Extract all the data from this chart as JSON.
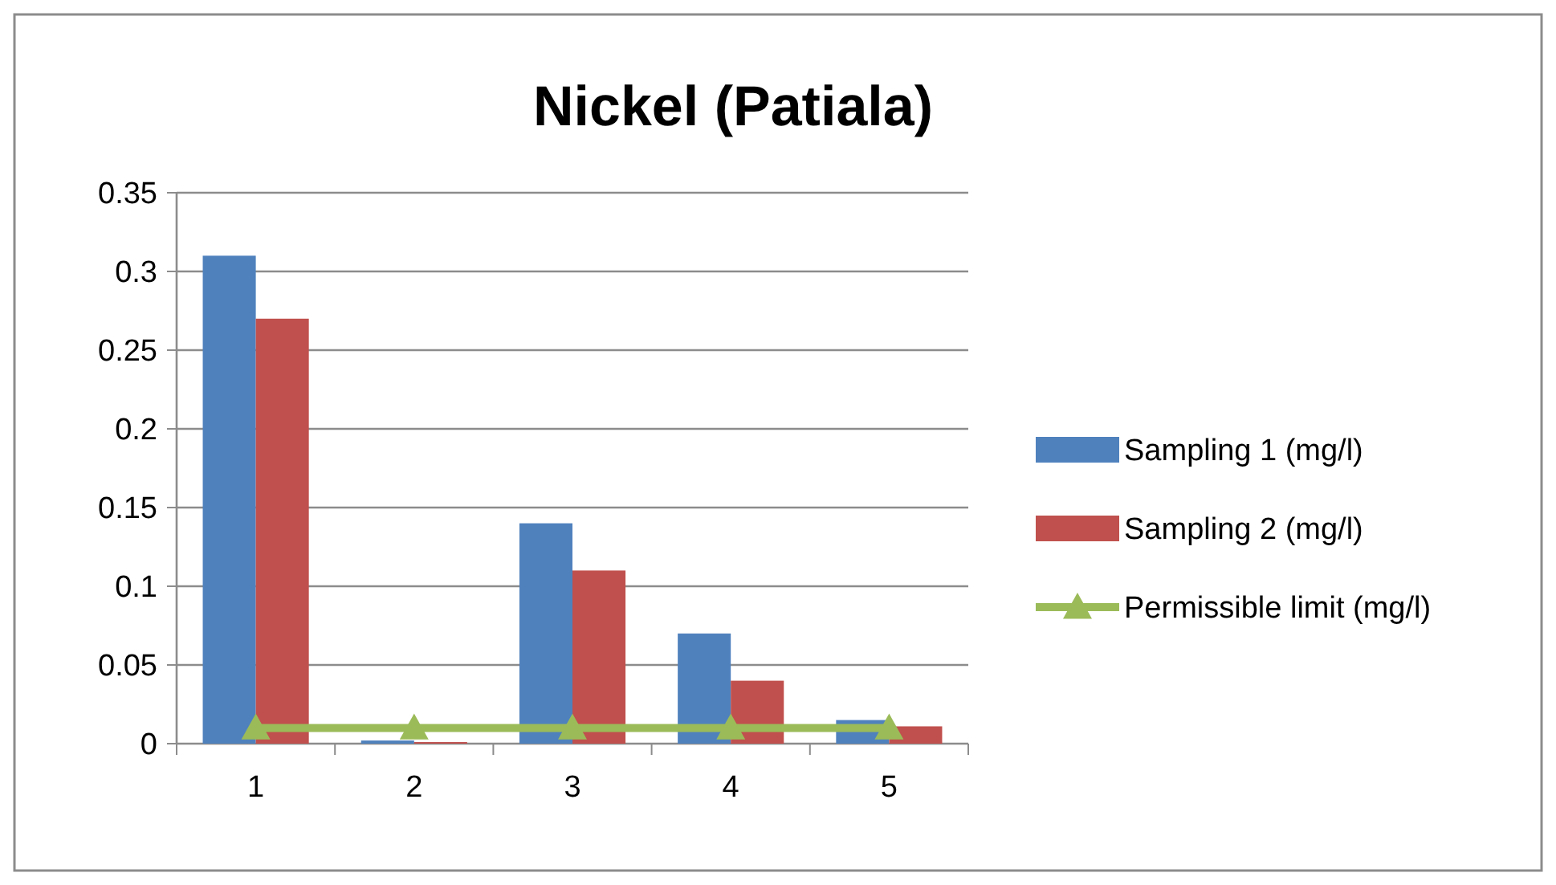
{
  "chart_data": {
    "type": "bar",
    "title": "Nickel (Patiala)",
    "categories": [
      "1",
      "2",
      "3",
      "4",
      "5"
    ],
    "series": [
      {
        "name": "Sampling 1 (mg/l)",
        "color": "#4f81bd",
        "values": [
          0.31,
          0.002,
          0.14,
          0.07,
          0.015
        ]
      },
      {
        "name": "Sampling 2 (mg/l)",
        "color": "#c0504d",
        "values": [
          0.27,
          0.001,
          0.11,
          0.04,
          0.011
        ]
      },
      {
        "name": "Permissible limit (mg/l)",
        "type": "line",
        "color": "#9bbb59",
        "marker": "triangle",
        "values": [
          0.01,
          0.01,
          0.01,
          0.01,
          0.01
        ]
      }
    ],
    "ylim": [
      0,
      0.35
    ],
    "yticks": [
      0,
      0.05,
      0.1,
      0.15,
      0.2,
      0.25,
      0.3,
      0.35
    ],
    "grid": "y",
    "legend": "right"
  }
}
